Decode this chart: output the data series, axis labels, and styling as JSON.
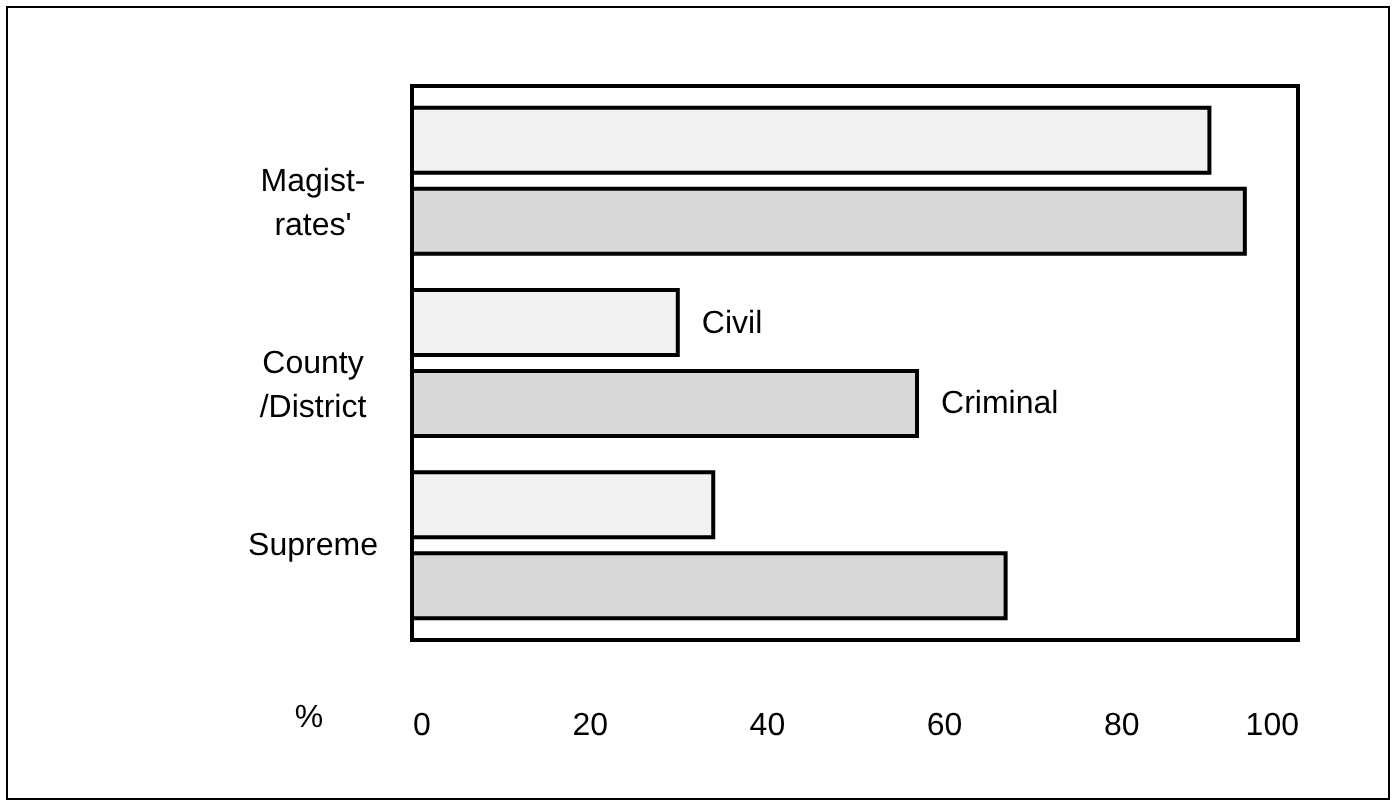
{
  "chart_data": {
    "type": "bar",
    "orientation": "horizontal",
    "xlabel": "%",
    "categories": [
      "Magist-\nrates'",
      "County\n/District",
      "Supreme"
    ],
    "series": [
      {
        "name": "Civil",
        "color": "#f2f2f2",
        "values": [
          90,
          30,
          34
        ]
      },
      {
        "name": "Criminal",
        "color": "#d9d9d9",
        "values": [
          94,
          57,
          67
        ]
      }
    ],
    "xlim": [
      0,
      100
    ],
    "xticks": [
      0,
      20,
      40,
      60,
      80,
      100
    ],
    "grid": false,
    "legend": false
  }
}
